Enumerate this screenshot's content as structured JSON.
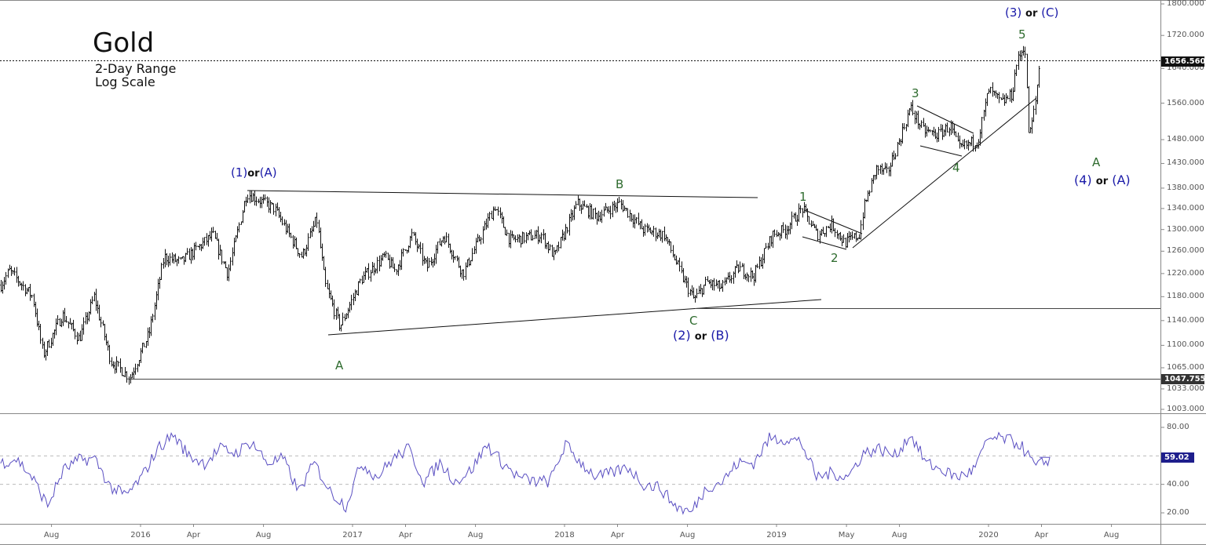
{
  "chart_data": {
    "type": "bar",
    "subtype": "ohlc-range-bars",
    "title": "Gold",
    "subtitle": [
      "2-Day Range",
      "Log Scale"
    ],
    "y_scale": "log",
    "ylim": [
      1003,
      1800
    ],
    "y_ticks": [
      "1800.000",
      "1720.000",
      "1640.000",
      "1560.000",
      "1480.000",
      "1430.000",
      "1380.000",
      "1340.000",
      "1300.000",
      "1260.000",
      "1220.000",
      "1180.000",
      "1140.000",
      "1100.000",
      "1065.000",
      "1033.000",
      "1003.000"
    ],
    "last_price": "1656.560",
    "support_level": "1047.755",
    "x_ticks": [
      {
        "label": "Aug",
        "t": 2015.58
      },
      {
        "label": "2016",
        "t": 2016.0
      },
      {
        "label": "Apr",
        "t": 2016.25
      },
      {
        "label": "Aug",
        "t": 2016.58
      },
      {
        "label": "2017",
        "t": 2017.0
      },
      {
        "label": "Apr",
        "t": 2017.25
      },
      {
        "label": "Aug",
        "t": 2017.58
      },
      {
        "label": "2018",
        "t": 2018.0
      },
      {
        "label": "Apr",
        "t": 2018.25
      },
      {
        "label": "Aug",
        "t": 2018.58
      },
      {
        "label": "2019",
        "t": 2019.0
      },
      {
        "label": "May",
        "t": 2019.33
      },
      {
        "label": "Aug",
        "t": 2019.58
      },
      {
        "label": "2020",
        "t": 2020.0
      },
      {
        "label": "Apr",
        "t": 2020.25
      },
      {
        "label": "Aug",
        "t": 2020.58
      }
    ],
    "price_path": [
      [
        2015.34,
        1200
      ],
      [
        2015.38,
        1225
      ],
      [
        2015.49,
        1180
      ],
      [
        2015.54,
        1085
      ],
      [
        2015.63,
        1150
      ],
      [
        2015.71,
        1110
      ],
      [
        2015.78,
        1180
      ],
      [
        2015.86,
        1075
      ],
      [
        2015.95,
        1050
      ],
      [
        2016.04,
        1120
      ],
      [
        2016.11,
        1250
      ],
      [
        2016.19,
        1240
      ],
      [
        2016.34,
        1290
      ],
      [
        2016.41,
        1220
      ],
      [
        2016.5,
        1370
      ],
      [
        2016.63,
        1340
      ],
      [
        2016.76,
        1250
      ],
      [
        2016.83,
        1320
      ],
      [
        2016.87,
        1200
      ],
      [
        2016.94,
        1130
      ],
      [
        2017.04,
        1210
      ],
      [
        2017.15,
        1250
      ],
      [
        2017.2,
        1225
      ],
      [
        2017.28,
        1290
      ],
      [
        2017.35,
        1230
      ],
      [
        2017.43,
        1290
      ],
      [
        2017.52,
        1220
      ],
      [
        2017.67,
        1345
      ],
      [
        2017.74,
        1280
      ],
      [
        2017.89,
        1290
      ],
      [
        2017.95,
        1250
      ],
      [
        2018.06,
        1350
      ],
      [
        2018.15,
        1325
      ],
      [
        2018.26,
        1350
      ],
      [
        2018.37,
        1300
      ],
      [
        2018.47,
        1290
      ],
      [
        2018.56,
        1210
      ],
      [
        2018.61,
        1175
      ],
      [
        2018.67,
        1205
      ],
      [
        2018.74,
        1195
      ],
      [
        2018.82,
        1230
      ],
      [
        2018.89,
        1215
      ],
      [
        2018.98,
        1290
      ],
      [
        2019.04,
        1300
      ],
      [
        2019.12,
        1340
      ],
      [
        2019.19,
        1290
      ],
      [
        2019.26,
        1310
      ],
      [
        2019.32,
        1275
      ],
      [
        2019.39,
        1290
      ],
      [
        2019.41,
        1340
      ],
      [
        2019.47,
        1420
      ],
      [
        2019.52,
        1410
      ],
      [
        2019.58,
        1480
      ],
      [
        2019.63,
        1550
      ],
      [
        2019.69,
        1500
      ],
      [
        2019.76,
        1490
      ],
      [
        2019.82,
        1510
      ],
      [
        2019.86,
        1460
      ],
      [
        2019.95,
        1480
      ],
      [
        2020.0,
        1590
      ],
      [
        2020.06,
        1560
      ],
      [
        2020.11,
        1580
      ],
      [
        2020.13,
        1650
      ],
      [
        2020.17,
        1700
      ],
      [
        2020.19,
        1480
      ],
      [
        2020.22,
        1560
      ],
      [
        2020.24,
        1656.56
      ]
    ],
    "rsi": {
      "y_ticks": [
        "80.00",
        "40.00",
        "20.00"
      ],
      "ylim": [
        10,
        90
      ],
      "levels": [
        60,
        40
      ],
      "last_value": "59.02",
      "start_t": 2015.34,
      "step_t": 0.074,
      "values": [
        55,
        58,
        45,
        25,
        50,
        57,
        58,
        38,
        32,
        45,
        65,
        75,
        60,
        55,
        65,
        62,
        70,
        55,
        58,
        35,
        55,
        35,
        25,
        55,
        45,
        58,
        65,
        42,
        55,
        42,
        50,
        68,
        55,
        45,
        42,
        42,
        68,
        55,
        45,
        48,
        52,
        40,
        38,
        25,
        20,
        38,
        42,
        55,
        55,
        72,
        72,
        70,
        45,
        48,
        45,
        62,
        65,
        60,
        75,
        55,
        50,
        45,
        50,
        72,
        72,
        68,
        52,
        59.02
      ]
    },
    "annotations": {
      "w1_top": {
        "a": "(1)",
        "or": "or",
        "b": "(A)"
      },
      "B": "B",
      "A_low": "A",
      "C": "C",
      "w2": {
        "a": "(2)",
        "or": "or",
        "b": "(B)"
      },
      "n1": "1",
      "n2": "2",
      "n3": "3",
      "n4": "4",
      "n5": "5",
      "w3": {
        "a": "(3)",
        "or": "or",
        "b": "(C)"
      },
      "A_next": "A",
      "w4": {
        "a": "(4)",
        "or": "or",
        "b": "(A)"
      }
    },
    "colors": {
      "bars": "#000000",
      "rsi": "#5a4fc2",
      "wave_green": "#2e6b2e",
      "wave_blue": "#1a1aa8",
      "rsi_tag": "#1e1e8c"
    }
  }
}
